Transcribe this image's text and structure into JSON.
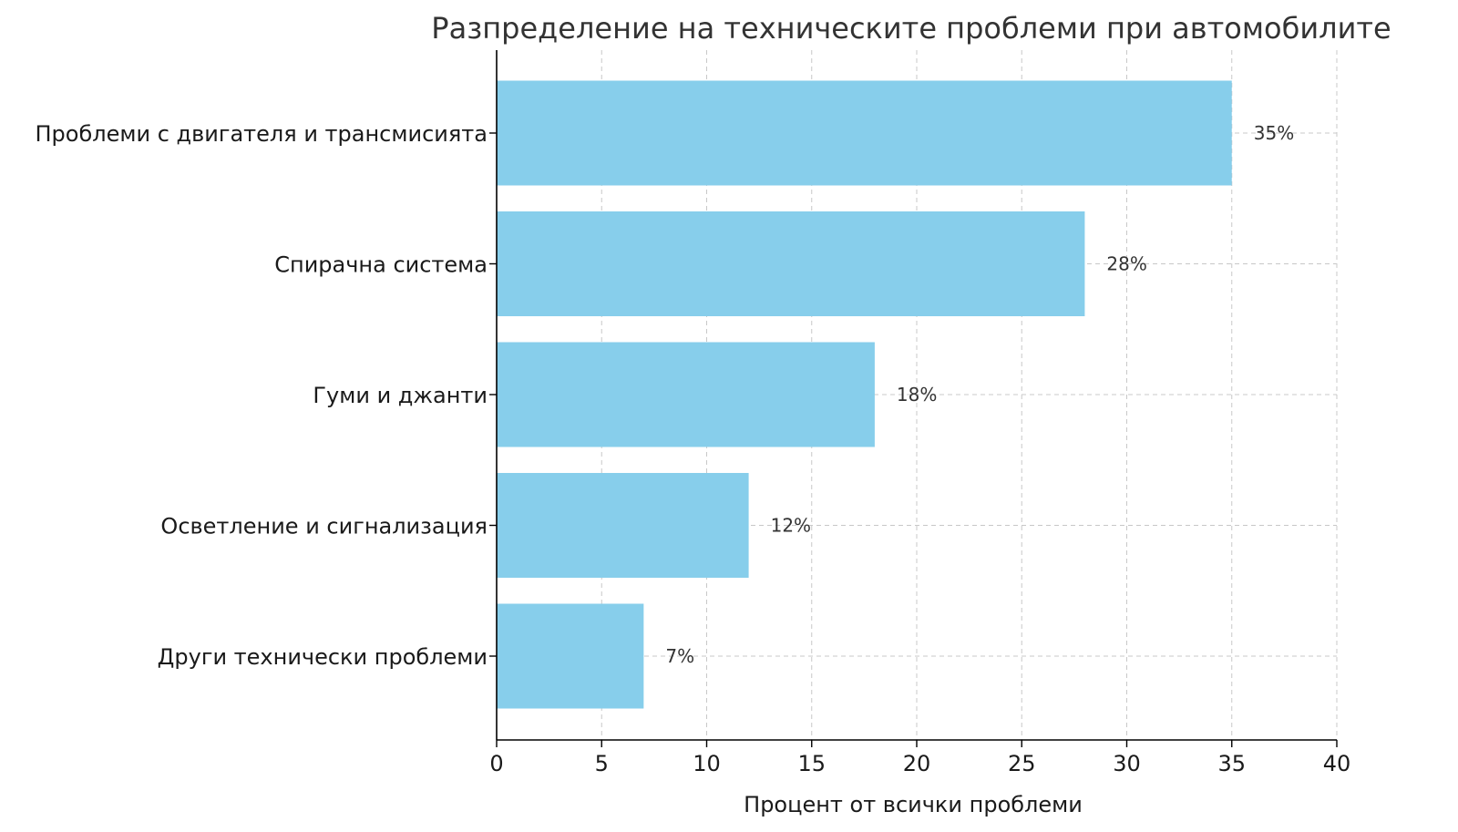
{
  "chart_data": {
    "type": "bar",
    "orientation": "horizontal",
    "title": "Разпределение на техническите проблеми при автомобилите",
    "xlabel": "Процент от всички проблеми",
    "ylabel": "",
    "categories": [
      "Проблеми с двигателя и трансмисията",
      "Спирачна система",
      "Гуми и джанти",
      "Осветление и сигнализация",
      "Други технически проблеми"
    ],
    "values": [
      35,
      28,
      18,
      12,
      7
    ],
    "data_labels": [
      "35%",
      "28%",
      "18%",
      "12%",
      "7%"
    ],
    "xlim": [
      0,
      40
    ],
    "xticks": [
      0,
      5,
      10,
      15,
      20,
      25,
      30,
      35,
      40
    ],
    "grid": true,
    "bar_color": "#87ceeb",
    "legend": "none"
  }
}
